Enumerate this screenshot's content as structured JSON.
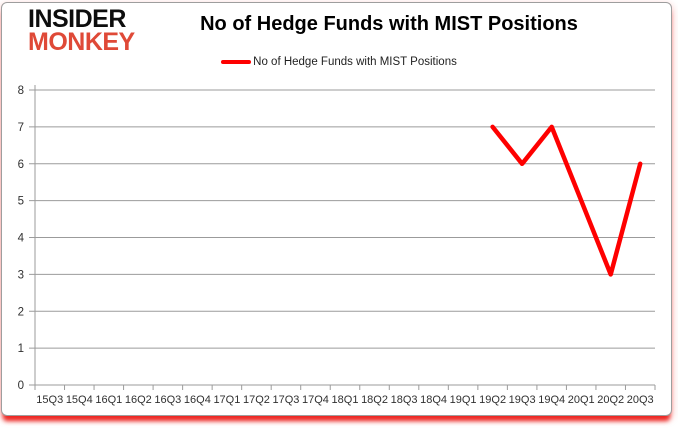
{
  "brand": {
    "line1": "INSIDER",
    "line2": "MONKEY"
  },
  "header": {
    "title": "No of Hedge Funds with MIST Positions"
  },
  "legend": {
    "label": "No of Hedge Funds with MIST Positions"
  },
  "colors": {
    "series_red": "#fe0000",
    "brand_black": "#0d0d0d",
    "brand_red": "#df4937",
    "grid_gray": "#9b9b9b",
    "axis_text": "#303030",
    "bottom_bar_red": "#ec1f1a",
    "card_border": "#9e9e9e"
  },
  "chart_data": {
    "type": "line",
    "title": "No of Hedge Funds with MIST Positions",
    "xlabel": "",
    "ylabel": "",
    "categories": [
      "15Q3",
      "15Q4",
      "16Q1",
      "16Q2",
      "16Q3",
      "16Q4",
      "17Q1",
      "17Q2",
      "17Q3",
      "17Q4",
      "18Q1",
      "18Q2",
      "18Q3",
      "18Q4",
      "19Q1",
      "19Q2",
      "19Q3",
      "19Q4",
      "20Q1",
      "20Q2",
      "20Q3"
    ],
    "series": [
      {
        "name": "No of Hedge Funds with MIST Positions",
        "color": "#fe0000",
        "values": [
          null,
          null,
          null,
          null,
          null,
          null,
          null,
          null,
          null,
          null,
          null,
          null,
          null,
          null,
          null,
          7,
          6,
          7,
          5,
          3,
          6
        ]
      }
    ],
    "ylim": [
      0,
      8
    ],
    "yticks": [
      0,
      1,
      2,
      3,
      4,
      5,
      6,
      7,
      8
    ],
    "grid": true,
    "legend_position": "top-center"
  }
}
